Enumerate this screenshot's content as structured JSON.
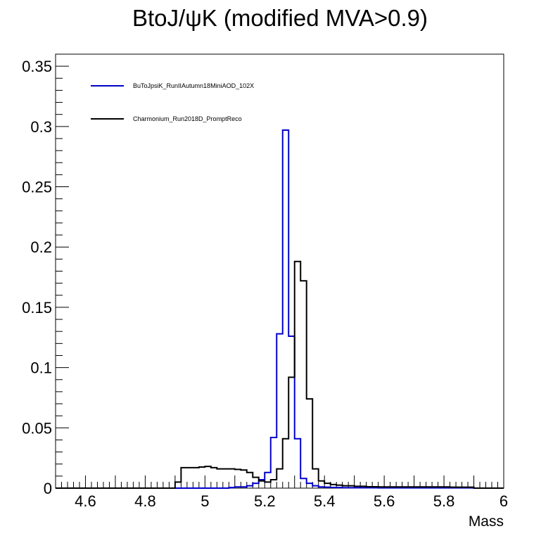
{
  "chart_data": {
    "type": "line",
    "title": "BtoJ/ψK (modified MVA>0.9)",
    "xlabel": "Mass",
    "ylabel": "",
    "xlim": [
      4.5,
      6.0
    ],
    "ylim": [
      0,
      0.36
    ],
    "x_ticks": [
      "4.6",
      "4.8",
      "5",
      "5.2",
      "5.4",
      "5.6",
      "5.8",
      "6"
    ],
    "y_ticks": [
      "0",
      "0.05",
      "0.1",
      "0.15",
      "0.2",
      "0.25",
      "0.3",
      "0.35"
    ],
    "grid": false,
    "legend_position": "top-left",
    "bin_edges": [
      4.9,
      4.92,
      4.94,
      4.96,
      4.98,
      5.0,
      5.02,
      5.04,
      5.06,
      5.08,
      5.1,
      5.12,
      5.14,
      5.16,
      5.18,
      5.2,
      5.22,
      5.24,
      5.26,
      5.28,
      5.3,
      5.32,
      5.34,
      5.36,
      5.38,
      5.4,
      5.42,
      5.44,
      5.46,
      5.48,
      5.5,
      5.52,
      5.54,
      5.56,
      5.58,
      5.6,
      5.62,
      5.64,
      5.66,
      5.68,
      5.7,
      5.72,
      5.74,
      5.76,
      5.78,
      5.8,
      5.82,
      5.84,
      5.86,
      5.88,
      5.9
    ],
    "series": [
      {
        "name": "BuToJpsiK_RunIIAutumn18MiniAOD_102X",
        "color": "#0000cc",
        "values": [
          0,
          0,
          0,
          0,
          0,
          0,
          0,
          0,
          0,
          0.0005,
          0.001,
          0.001,
          0.002,
          0.004,
          0.007,
          0.013,
          0.042,
          0.128,
          0.297,
          0.126,
          0.041,
          0.008,
          0.004,
          0.002,
          0.001,
          0.0008,
          0.0006,
          0.0005,
          0.0004,
          0.0004,
          0.0003,
          0.0003,
          0.0003,
          0.0003,
          0.0002,
          0.0002,
          0.0002,
          0.0002,
          0.0002,
          0.0002,
          0.0002,
          0.0002,
          0.0002,
          0.0002,
          0.0002,
          0.0002,
          0.0002,
          0.0002,
          0.0002,
          0.0002
        ]
      },
      {
        "name": "Charmonium_Run2018D_PromptReco",
        "color": "#000000",
        "values": [
          0.005,
          0.017,
          0.017,
          0.017,
          0.0175,
          0.018,
          0.017,
          0.016,
          0.016,
          0.016,
          0.0155,
          0.015,
          0.013,
          0.009,
          0.006,
          0.005,
          0.007,
          0.016,
          0.041,
          0.092,
          0.188,
          0.172,
          0.074,
          0.016,
          0.006,
          0.004,
          0.003,
          0.0025,
          0.002,
          0.002,
          0.0015,
          0.0015,
          0.0012,
          0.0012,
          0.001,
          0.001,
          0.001,
          0.001,
          0.001,
          0.001,
          0.001,
          0.001,
          0.001,
          0.001,
          0.001,
          0.001,
          0.0008,
          0.0008,
          0.0008,
          0.0008
        ]
      }
    ]
  }
}
